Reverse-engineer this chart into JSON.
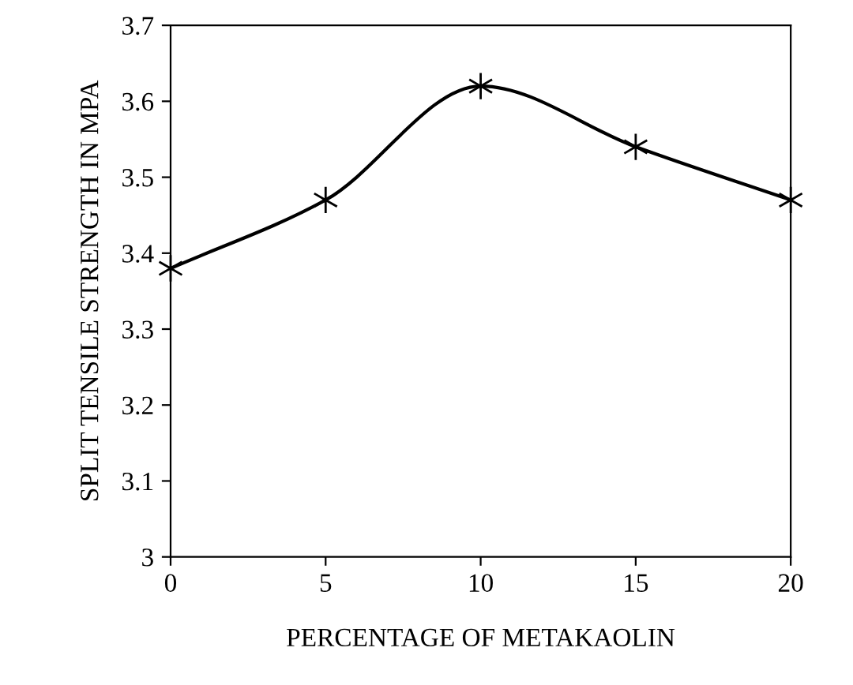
{
  "chart_data": {
    "type": "line",
    "xlabel": "PERCENTAGE OF METAKAOLIN",
    "ylabel": "SPLIT TENSILE STRENGTH IN MPA",
    "x": [
      0,
      5,
      10,
      15,
      20
    ],
    "series": [
      {
        "color": "#000000",
        "values": [
          3.38,
          3.47,
          3.62,
          3.54,
          3.47
        ]
      }
    ],
    "xlim": [
      0,
      20
    ],
    "xticks": [
      0,
      5,
      10,
      15,
      20
    ],
    "ylim": [
      3,
      3.7
    ],
    "yticks": [
      3,
      3.1,
      3.2,
      3.3,
      3.4,
      3.5,
      3.6,
      3.7
    ],
    "grid": false,
    "legend": false,
    "marker": "cross",
    "line_style": "solid"
  }
}
